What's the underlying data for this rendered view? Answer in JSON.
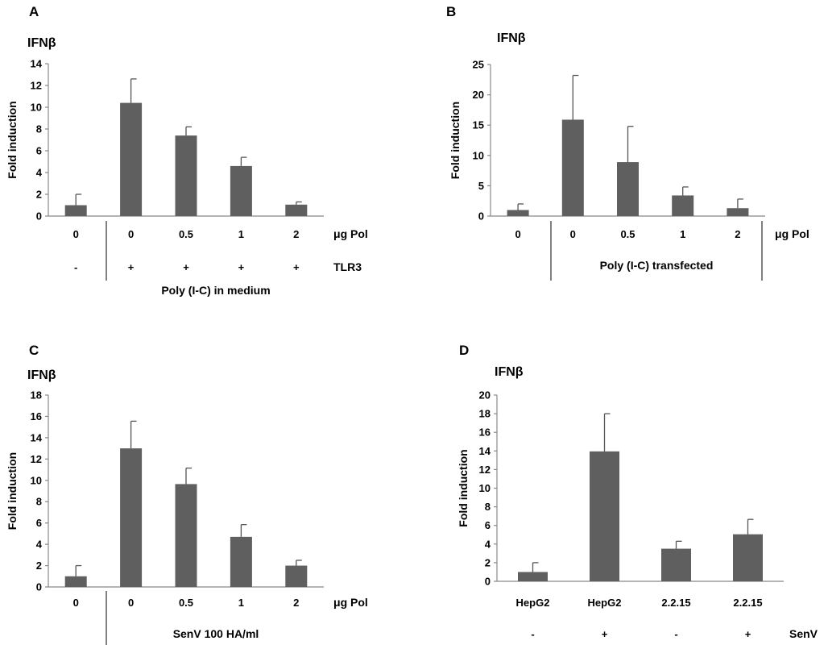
{
  "colors": {
    "bar": "#5f5f5f",
    "axis": "#888888",
    "text": "#000000"
  },
  "chart_data": [
    {
      "panel": "A",
      "type": "bar",
      "title": "IFNβ",
      "ylabel": "Fold induction",
      "ylim": [
        0,
        14
      ],
      "yticks": [
        0,
        2,
        4,
        6,
        8,
        10,
        12,
        14
      ],
      "categories": [
        "0",
        "0",
        "0.5",
        "1",
        "2"
      ],
      "values": [
        1.0,
        10.4,
        7.4,
        4.6,
        1.05
      ],
      "errors": [
        1.0,
        2.2,
        0.8,
        0.8,
        0.25
      ],
      "row_labels": [
        {
          "label": "μg Pol",
          "values": [
            "0",
            "0",
            "0.5",
            "1",
            "2"
          ]
        },
        {
          "label": "TLR3",
          "values": [
            "-",
            "+",
            "+",
            "+",
            "+"
          ]
        }
      ],
      "condition_label": "Poly (I-C) in medium"
    },
    {
      "panel": "B",
      "type": "bar",
      "title": "IFNβ",
      "ylabel": "Fold induction",
      "ylim": [
        0,
        25
      ],
      "yticks": [
        0,
        5,
        10,
        15,
        20,
        25
      ],
      "categories": [
        "0",
        "0",
        "0.5",
        "1",
        "2"
      ],
      "values": [
        1.0,
        15.9,
        8.9,
        3.4,
        1.3
      ],
      "errors": [
        1.0,
        7.3,
        5.9,
        1.4,
        1.5
      ],
      "row_labels": [
        {
          "label": "μg Pol",
          "values": [
            "0",
            "0",
            "0.5",
            "1",
            "2"
          ]
        }
      ],
      "condition_label": "Poly (I-C) transfected"
    },
    {
      "panel": "C",
      "type": "bar",
      "title": "IFNβ",
      "ylabel": "Fold induction",
      "ylim": [
        0,
        18
      ],
      "yticks": [
        0,
        2,
        4,
        6,
        8,
        10,
        12,
        14,
        16,
        18
      ],
      "categories": [
        "0",
        "0",
        "0.5",
        "1",
        "2"
      ],
      "values": [
        1.0,
        13.0,
        9.65,
        4.7,
        2.0
      ],
      "errors": [
        1.0,
        2.55,
        1.5,
        1.15,
        0.5
      ],
      "row_labels": [
        {
          "label": "μg Pol",
          "values": [
            "0",
            "0",
            "0.5",
            "1",
            "2"
          ]
        }
      ],
      "condition_label": "SenV 100 HA/ml"
    },
    {
      "panel": "D",
      "type": "bar",
      "title": "IFNβ",
      "ylabel": "Fold induction",
      "ylim": [
        0,
        20
      ],
      "yticks": [
        0,
        2,
        4,
        6,
        8,
        10,
        12,
        14,
        16,
        18,
        20
      ],
      "categories": [
        "HepG2",
        "HepG2",
        "2.2.15",
        "2.2.15"
      ],
      "values": [
        1.0,
        13.95,
        3.5,
        5.05
      ],
      "errors": [
        1.0,
        4.05,
        0.8,
        1.6
      ],
      "row_labels": [
        {
          "label": "",
          "values": [
            "HepG2",
            "HepG2",
            "2.2.15",
            "2.2.15"
          ]
        },
        {
          "label": "SenV",
          "values": [
            "-",
            "+",
            "-",
            "+"
          ]
        }
      ],
      "condition_label": ""
    }
  ]
}
